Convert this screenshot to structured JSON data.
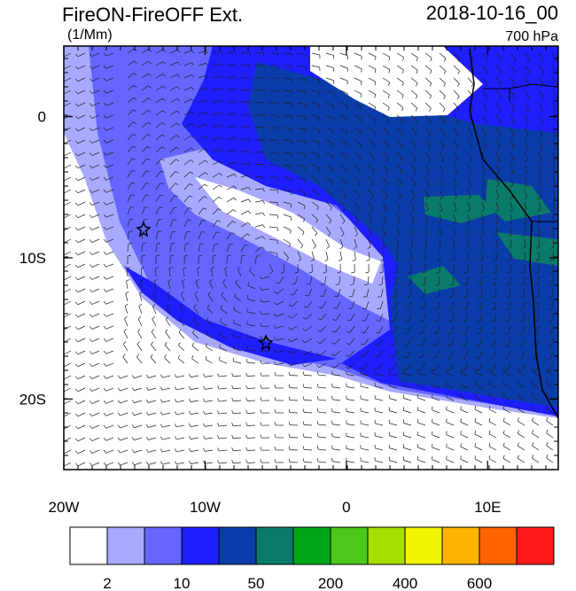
{
  "header": {
    "title": "FireON-FireOFF Ext.",
    "units": "(1/Mm)",
    "date": "2018-10-16_00",
    "level": "700 hPa"
  },
  "map": {
    "lon_range": [
      -20,
      15
    ],
    "lat_range": [
      -25,
      5
    ],
    "xticks": [
      {
        "value": -20,
        "label": "20W"
      },
      {
        "value": -10,
        "label": "10W"
      },
      {
        "value": 0,
        "label": "0"
      },
      {
        "value": 10,
        "label": "10E"
      }
    ],
    "yticks": [
      {
        "value": 0,
        "label": "0"
      },
      {
        "value": -10,
        "label": "10S"
      },
      {
        "value": -20,
        "label": "20S"
      }
    ]
  },
  "colorbar": {
    "colors": [
      "#ffffff",
      "#a8aaff",
      "#6466ff",
      "#1e1eff",
      "#0a3caa",
      "#0a7a6a",
      "#00a618",
      "#4cc818",
      "#a6e000",
      "#f4f400",
      "#ffb400",
      "#ff6400",
      "#ff1a1a"
    ],
    "labels": [
      "2",
      "10",
      "50",
      "200",
      "400",
      "600"
    ]
  }
}
